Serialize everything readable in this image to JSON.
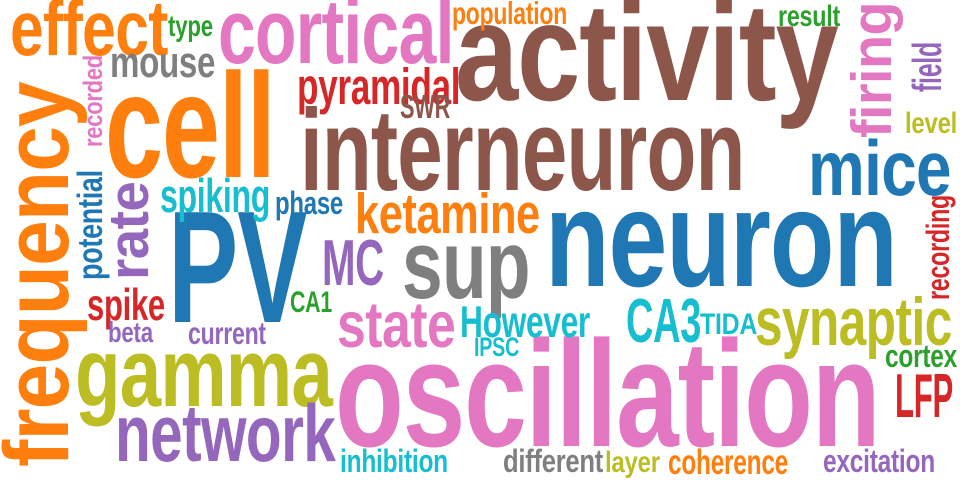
{
  "palette": {
    "orange": "#ff7f0e",
    "blue": "#1f77b4",
    "brown": "#8c564b",
    "pink": "#e377c2",
    "purple": "#9467bd",
    "olive": "#bcbd22",
    "cyan": "#17becf",
    "gray": "#7f7f7f",
    "red": "#d62728",
    "green": "#2ca02c"
  },
  "words": [
    {
      "text": "activity",
      "color": "brown"
    },
    {
      "text": "cell",
      "color": "orange"
    },
    {
      "text": "interneuron",
      "color": "brown"
    },
    {
      "text": "neuron",
      "color": "blue"
    },
    {
      "text": "oscillation",
      "color": "pink"
    },
    {
      "text": "PV",
      "color": "blue"
    },
    {
      "text": "frequency",
      "color": "orange"
    },
    {
      "text": "gamma",
      "color": "olive"
    },
    {
      "text": "cortical",
      "color": "pink"
    },
    {
      "text": "effect",
      "color": "orange"
    },
    {
      "text": "sup",
      "color": "gray"
    },
    {
      "text": "network",
      "color": "purple"
    },
    {
      "text": "mice",
      "color": "blue"
    },
    {
      "text": "synaptic",
      "color": "olive"
    },
    {
      "text": "firing",
      "color": "pink"
    },
    {
      "text": "rate",
      "color": "purple"
    },
    {
      "text": "state",
      "color": "pink"
    },
    {
      "text": "ketamine",
      "color": "orange"
    },
    {
      "text": "pyramidal",
      "color": "red"
    },
    {
      "text": "mouse",
      "color": "gray"
    },
    {
      "text": "CA3",
      "color": "cyan"
    },
    {
      "text": "LFP",
      "color": "red"
    },
    {
      "text": "MC",
      "color": "purple"
    },
    {
      "text": "spiking",
      "color": "cyan"
    },
    {
      "text": "However",
      "color": "cyan"
    },
    {
      "text": "spike",
      "color": "red"
    },
    {
      "text": "field",
      "color": "purple"
    },
    {
      "text": "population",
      "color": "orange"
    },
    {
      "text": "potential",
      "color": "blue"
    },
    {
      "text": "inhibition",
      "color": "cyan"
    },
    {
      "text": "excitation",
      "color": "purple"
    },
    {
      "text": "coherence",
      "color": "orange"
    },
    {
      "text": "different",
      "color": "gray"
    },
    {
      "text": "recording",
      "color": "red"
    },
    {
      "text": "cortex",
      "color": "green"
    },
    {
      "text": "SWR",
      "color": "brown"
    },
    {
      "text": "phase",
      "color": "blue"
    },
    {
      "text": "result",
      "color": "green"
    },
    {
      "text": "level",
      "color": "olive"
    },
    {
      "text": "type",
      "color": "green"
    },
    {
      "text": "recorded",
      "color": "pink"
    },
    {
      "text": "current",
      "color": "purple"
    },
    {
      "text": "beta",
      "color": "purple"
    },
    {
      "text": "CA1",
      "color": "green"
    },
    {
      "text": "TIDA",
      "color": "cyan"
    },
    {
      "text": "layer",
      "color": "olive"
    },
    {
      "text": "IPSC",
      "color": "cyan"
    }
  ]
}
